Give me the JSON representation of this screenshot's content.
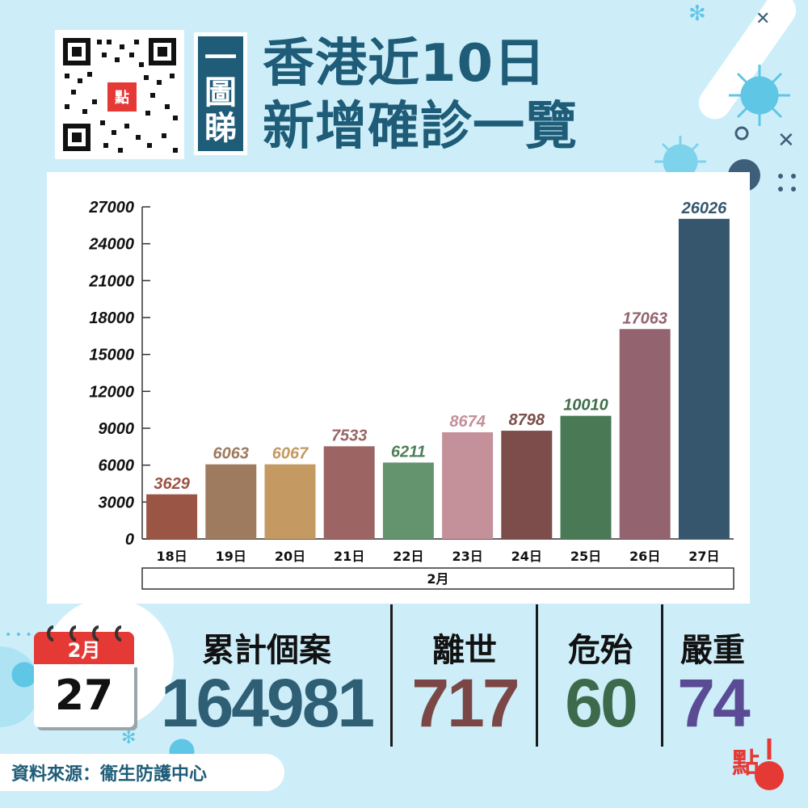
{
  "qr": {
    "logo_text": "點"
  },
  "header": {
    "tag_chars": [
      "一",
      "圖",
      "睇"
    ],
    "title_line1": "香港近10日",
    "title_line2": "新增確診一覽"
  },
  "chart_data": {
    "type": "bar",
    "categories": [
      "18日",
      "19日",
      "20日",
      "21日",
      "22日",
      "23日",
      "24日",
      "25日",
      "26日",
      "27日"
    ],
    "values": [
      3629,
      6063,
      6067,
      7533,
      6211,
      8674,
      8798,
      10010,
      17063,
      26026
    ],
    "bar_colors": [
      "#9b5545",
      "#9e7b5f",
      "#c49a62",
      "#9c6564",
      "#64946e",
      "#c4909a",
      "#7c4d4b",
      "#4a7a55",
      "#93646f",
      "#35566d"
    ],
    "label_colors": [
      "#9b5545",
      "#9e7b5f",
      "#c49a62",
      "#9c6564",
      "#4f7f5a",
      "#c4909a",
      "#7c4d4b",
      "#3f6e4b",
      "#93646f",
      "#35566d"
    ],
    "group_label": "2月",
    "yticks": [
      0,
      3000,
      6000,
      9000,
      12000,
      15000,
      18000,
      21000,
      24000,
      27000
    ],
    "ylim": [
      0,
      27000
    ],
    "grid": false,
    "title": "",
    "xlabel": "",
    "ylabel": ""
  },
  "calendar": {
    "month": "2月",
    "day": "27"
  },
  "stats": [
    {
      "label": "累計個案",
      "value": "164981",
      "color": "#2f5f75"
    },
    {
      "label": "離世",
      "value": "717",
      "color": "#7a4746"
    },
    {
      "label": "危殆",
      "value": "60",
      "color": "#3c6a4a"
    },
    {
      "label": "嚴重",
      "value": "74",
      "color": "#5a4b94"
    }
  ],
  "source": "資料來源：衞生防護中心",
  "brand_logo_text": "點"
}
